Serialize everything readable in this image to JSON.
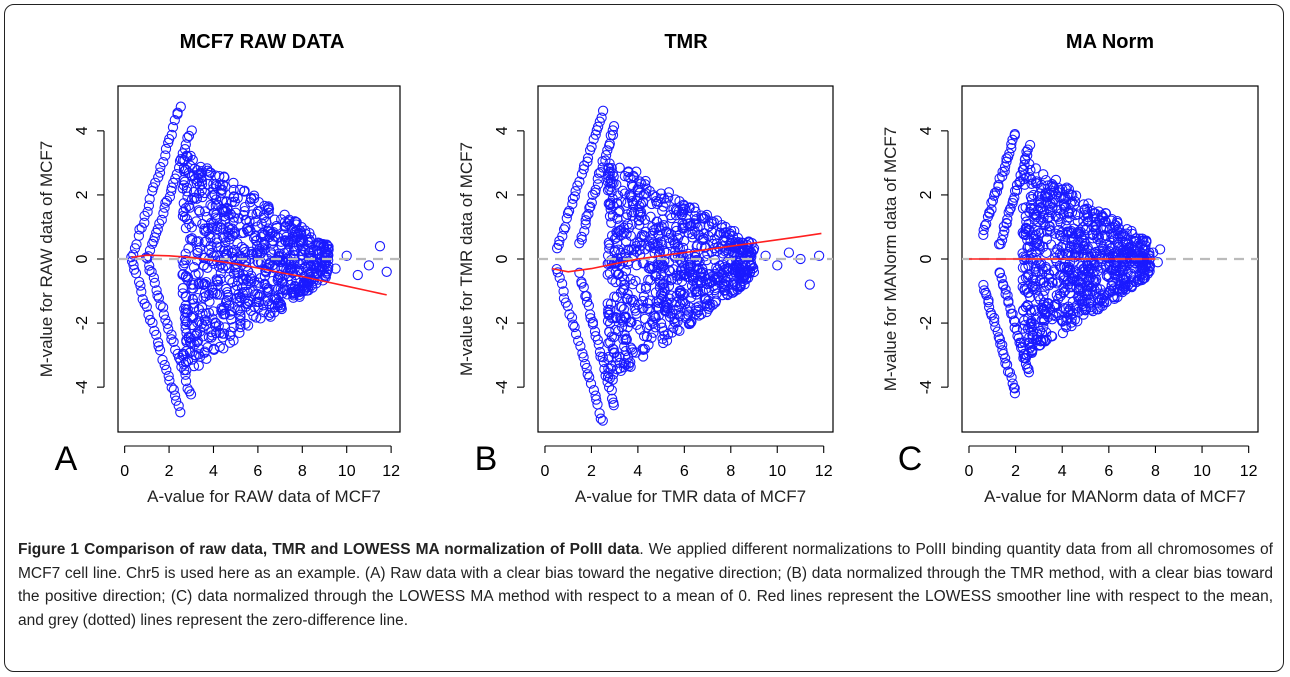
{
  "figure": {
    "caption_title": "Figure 1 Comparison of raw data, TMR and LOWESS MA normalization of PolII data",
    "caption_body": ". We applied different normalizations to PolII binding quantity data from all chromosomes of MCF7 cell line. Chr5 is used here as an example. (A) Raw data with a clear bias toward the negative direction; (B) data normalized through the TMR method, with a clear bias toward the positive direction; (C) data normalized through the LOWESS MA method with respect to a mean of 0. Red lines represent the LOWESS smoother line with respect to the mean, and grey (dotted) lines represent the zero-difference line."
  },
  "colors": {
    "points": "#1a1aff",
    "lowess": "#ff2020",
    "zero_line": "#bbbbbb",
    "axis": "#000000"
  },
  "chart_data": [
    {
      "type": "scatter",
      "panel_label": "A",
      "title": "MCF7 RAW DATA",
      "xlabel": "A-value for RAW data of MCF7",
      "ylabel": "M-value for RAW data of MCF7",
      "xlim": [
        -0.3,
        12.4
      ],
      "ylim": [
        -5.4,
        5.4
      ],
      "xticks": [
        0,
        2,
        4,
        6,
        8,
        10,
        12
      ],
      "yticks": [
        -4,
        -2,
        0,
        2,
        4
      ],
      "xtick_labels": [
        "0",
        "2",
        "4",
        "6",
        "8",
        "10",
        "12"
      ],
      "ytick_labels": [
        "-4",
        "-2",
        "0",
        "2",
        "4"
      ],
      "zero_line": 0,
      "lowess": {
        "x": [
          0.3,
          1,
          2,
          3,
          4,
          5,
          6,
          7,
          8,
          9,
          10,
          11,
          11.8
        ],
        "y": [
          0.05,
          0.12,
          0.1,
          0.05,
          -0.05,
          -0.15,
          -0.28,
          -0.42,
          -0.55,
          -0.7,
          -0.85,
          -1.0,
          -1.12
        ]
      },
      "cloud": {
        "apex_x": 2.6,
        "top_y": 3.4,
        "bottom_y": -3.7,
        "end_x": 9.2,
        "outlier_x": [
          9.5,
          10,
          10.5,
          11,
          11.5,
          11.8
        ],
        "outlier_y": [
          -0.3,
          0.1,
          -0.5,
          -0.2,
          0.4,
          -0.4
        ]
      },
      "arms": [
        {
          "x0": 0.3,
          "y0": 0.0,
          "x1": 2.5,
          "y1": 4.8
        },
        {
          "x0": 0.3,
          "y0": 0.0,
          "x1": 2.5,
          "y1": -4.8
        },
        {
          "x0": 1.0,
          "y0": 0.0,
          "x1": 3.0,
          "y1": 4.0
        },
        {
          "x0": 1.0,
          "y0": 0.0,
          "x1": 3.0,
          "y1": -4.3
        }
      ]
    },
    {
      "type": "scatter",
      "panel_label": "B",
      "title": "TMR",
      "xlabel": "A-value for TMR data of MCF7",
      "ylabel": "M-value for TMR data of MCF7",
      "xlim": [
        -0.3,
        12.4
      ],
      "ylim": [
        -5.4,
        5.4
      ],
      "xticks": [
        0,
        2,
        4,
        6,
        8,
        10,
        12
      ],
      "yticks": [
        -4,
        -2,
        0,
        2,
        4
      ],
      "xtick_labels": [
        "0",
        "2",
        "4",
        "6",
        "8",
        "10",
        "12"
      ],
      "ytick_labels": [
        "-4",
        "-2",
        "0",
        "2",
        "4"
      ],
      "zero_line": 0,
      "lowess": {
        "x": [
          0.3,
          1,
          2,
          3,
          4,
          5,
          6,
          7,
          8,
          9,
          10,
          11,
          11.9
        ],
        "y": [
          -0.3,
          -0.4,
          -0.3,
          -0.15,
          0.0,
          0.1,
          0.2,
          0.3,
          0.4,
          0.5,
          0.6,
          0.7,
          0.8
        ]
      },
      "cloud": {
        "apex_x": 2.7,
        "top_y": 3.3,
        "bottom_y": -3.9,
        "end_x": 9.0,
        "outlier_x": [
          9.5,
          10,
          10.5,
          11,
          11.4,
          11.8
        ],
        "outlier_y": [
          0.1,
          -0.2,
          0.2,
          0.0,
          -0.8,
          0.1
        ]
      },
      "arms": [
        {
          "x0": 0.5,
          "y0": 0.3,
          "x1": 2.5,
          "y1": 4.6
        },
        {
          "x0": 0.5,
          "y0": -0.3,
          "x1": 2.5,
          "y1": -5.1
        },
        {
          "x0": 1.5,
          "y0": 0.5,
          "x1": 3.0,
          "y1": 4.2
        },
        {
          "x0": 1.5,
          "y0": -0.5,
          "x1": 3.0,
          "y1": -4.6
        }
      ]
    },
    {
      "type": "scatter",
      "panel_label": "C",
      "title": "MA Norm",
      "xlabel": "A-value for MANorm data of MCF7",
      "ylabel": "M-value for MANorm data of MCF7",
      "xlim": [
        -0.3,
        12.4
      ],
      "ylim": [
        -5.4,
        5.4
      ],
      "xticks": [
        0,
        2,
        4,
        6,
        8,
        10,
        12
      ],
      "yticks": [
        -4,
        -2,
        0,
        2,
        4
      ],
      "xtick_labels": [
        "0",
        "2",
        "4",
        "6",
        "8",
        "10",
        "12"
      ],
      "ytick_labels": [
        "-4",
        "-2",
        "0",
        "2",
        "4"
      ],
      "zero_line": 0,
      "lowess": {
        "x": [
          0,
          1,
          2,
          3,
          4,
          5,
          6,
          7,
          8
        ],
        "y": [
          0.0,
          0.0,
          0.0,
          0.0,
          0.0,
          0.0,
          0.0,
          0.0,
          0.0
        ]
      },
      "cloud": {
        "apex_x": 2.3,
        "top_y": 3.2,
        "bottom_y": -3.2,
        "end_x": 7.8,
        "outlier_x": [
          7.9,
          8.1,
          8.2
        ],
        "outlier_y": [
          0.2,
          -0.1,
          0.3
        ]
      },
      "arms": [
        {
          "x0": 0.6,
          "y0": 0.8,
          "x1": 2.0,
          "y1": 3.9
        },
        {
          "x0": 0.6,
          "y0": -0.8,
          "x1": 2.0,
          "y1": -4.2
        },
        {
          "x0": 1.3,
          "y0": 0.4,
          "x1": 2.6,
          "y1": 3.5
        },
        {
          "x0": 1.3,
          "y0": -0.4,
          "x1": 2.6,
          "y1": -3.6
        }
      ]
    }
  ]
}
